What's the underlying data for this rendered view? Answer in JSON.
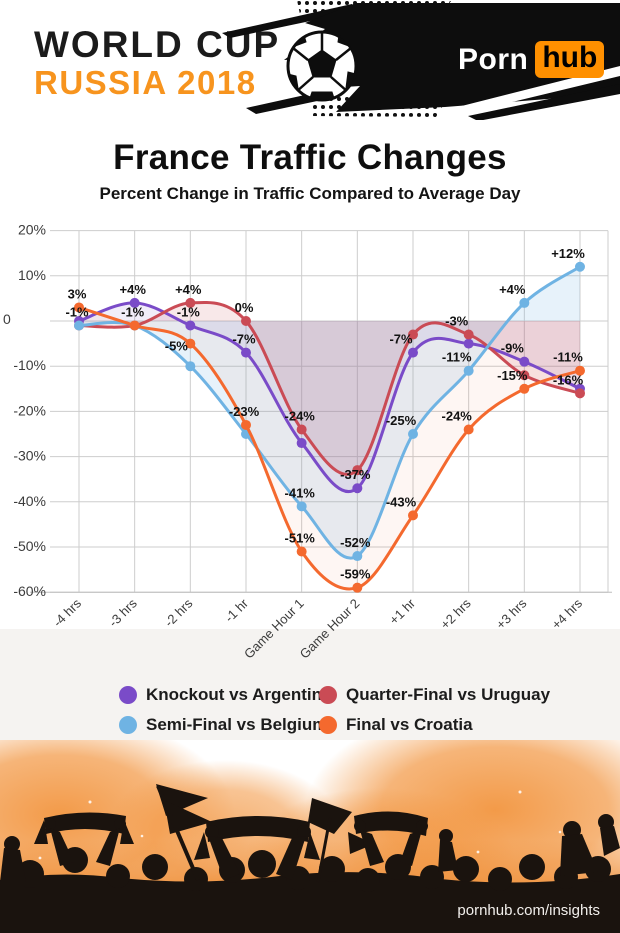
{
  "header": {
    "brand_top": "WORLD CUP",
    "brand_bottom": "RUSSIA 2018",
    "logo_porn": "Porn",
    "logo_hub": "hub",
    "colors": {
      "russia_orange": "#f7941e",
      "hub_orange": "#ff9000",
      "banner_black": "#0d0d0d"
    }
  },
  "title": "France Traffic Changes",
  "subtitle": "Percent Change in Traffic Compared to Average Day",
  "chart_data": {
    "type": "line",
    "title": "France Traffic Changes",
    "subtitle": "Percent Change in Traffic Compared to Average Day",
    "categories": [
      "-4 hrs",
      "-3 hrs",
      "-2 hrs",
      "-1 hr",
      "Game Hour 1",
      "Game Hour 2",
      "+1 hr",
      "+2 hrs",
      "+3 hrs",
      "+4 hrs"
    ],
    "ylim": [
      -60,
      20
    ],
    "yticks": [
      20,
      10,
      0,
      -10,
      -20,
      -30,
      -40,
      -50,
      -60
    ],
    "ytick_labels": [
      "20%",
      "10%",
      "0",
      "-10%",
      "-20%",
      "-30%",
      "-40%",
      "-50%",
      "-60%"
    ],
    "grid": true,
    "legend_position": "bottom",
    "series": [
      {
        "name": "Knockout vs Argentina",
        "color": "#7a4bc8",
        "values": [
          0,
          4,
          -1,
          -7,
          -27,
          -37,
          -7,
          -5,
          -9,
          -15
        ],
        "point_labels": [
          "",
          "+4%",
          "-1%",
          "-7%",
          "",
          "-37%",
          "-7%",
          "",
          "-9%",
          ""
        ]
      },
      {
        "name": "Quarter-Final vs Uruguay",
        "color": "#ca4b55",
        "values": [
          -1,
          -1,
          4,
          0,
          -24,
          -33,
          -3,
          -3,
          -12,
          -16
        ],
        "point_labels": [
          "-1%",
          "",
          "+4%",
          "0%",
          "-24%",
          "",
          "",
          "-3%",
          "",
          "-16%"
        ]
      },
      {
        "name": "Semi-Final vs Belgium",
        "color": "#6fb3e3",
        "values": [
          -1,
          -1,
          -10,
          -25,
          -41,
          -52,
          -25,
          -11,
          4,
          12
        ],
        "point_labels": [
          "",
          "-1%",
          "",
          "",
          "-41%",
          "-52%",
          "-25%",
          "-11%",
          "+4%",
          "+12%"
        ]
      },
      {
        "name": "Final vs Croatia",
        "color": "#f4692e",
        "values": [
          3,
          -1,
          -5,
          -23,
          -51,
          -59,
          -43,
          -24,
          -15,
          -11
        ],
        "point_labels": [
          "3%",
          "",
          "-5%",
          "-23%",
          "-51%",
          "-59%",
          "-43%",
          "-24%",
          "-15%",
          "-11%"
        ]
      }
    ]
  },
  "footer": {
    "link": "pornhub.com/insights"
  }
}
